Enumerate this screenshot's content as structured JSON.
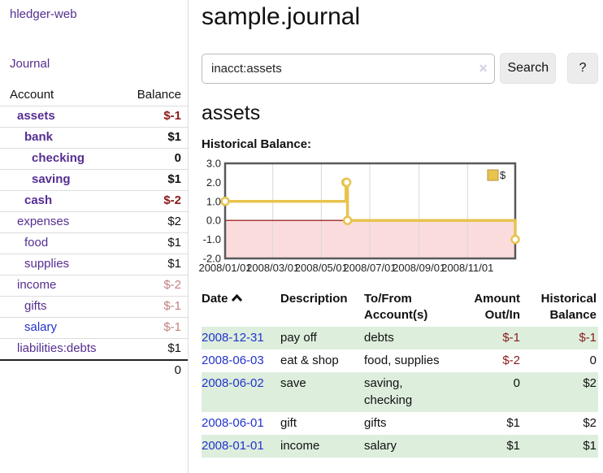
{
  "app": {
    "title": "hledger-web",
    "nav_journal_label": "Journal"
  },
  "sidebar": {
    "account_header": "Account",
    "balance_header": "Balance",
    "accounts": [
      {
        "name": "assets",
        "indent": 0,
        "balance": "$-1",
        "emph": true,
        "tone": "neg-strong",
        "link_tone": "purple"
      },
      {
        "name": "bank",
        "indent": 1,
        "balance": "$1",
        "emph": true,
        "tone": "pos",
        "link_tone": "purple"
      },
      {
        "name": "checking",
        "indent": 2,
        "balance": "0",
        "emph": true,
        "tone": "pos",
        "link_tone": "purple"
      },
      {
        "name": "saving",
        "indent": 2,
        "balance": "$1",
        "emph": true,
        "tone": "pos",
        "link_tone": "purple"
      },
      {
        "name": "cash",
        "indent": 1,
        "balance": "$-2",
        "emph": true,
        "tone": "neg-strong",
        "link_tone": "purple"
      },
      {
        "name": "expenses",
        "indent": 0,
        "balance": "$2",
        "emph": false,
        "tone": "pos",
        "link_tone": "purple"
      },
      {
        "name": "food",
        "indent": 1,
        "balance": "$1",
        "emph": false,
        "tone": "pos",
        "link_tone": "purple"
      },
      {
        "name": "supplies",
        "indent": 1,
        "balance": "$1",
        "emph": false,
        "tone": "pos",
        "link_tone": "purple"
      },
      {
        "name": "income",
        "indent": 0,
        "balance": "$-2",
        "emph": false,
        "tone": "neg-soft",
        "link_tone": "purple"
      },
      {
        "name": "gifts",
        "indent": 1,
        "balance": "$-1",
        "emph": false,
        "tone": "neg-soft",
        "link_tone": "purple"
      },
      {
        "name": "salary",
        "indent": 1,
        "balance": "$-1",
        "emph": false,
        "tone": "neg-soft",
        "link_tone": "blue"
      },
      {
        "name": "liabilities:debts",
        "indent": 0,
        "balance": "$1",
        "emph": false,
        "tone": "pos",
        "link_tone": "purple"
      }
    ],
    "total": "0"
  },
  "header": {
    "title": "sample.journal"
  },
  "search": {
    "query": "inacct:assets",
    "clear_icon": "✕",
    "search_button": "Search",
    "help_button": "?"
  },
  "account_page": {
    "title": "assets",
    "chart_label": "Historical Balance:"
  },
  "chart_data": {
    "type": "line",
    "style": "step-after",
    "title": "Historical Balance",
    "series": [
      {
        "name": "$",
        "points": [
          [
            "2008-01-01",
            1
          ],
          [
            "2008-06-01",
            2
          ],
          [
            "2008-06-02",
            2
          ],
          [
            "2008-06-03",
            0
          ],
          [
            "2008-12-31",
            -1
          ]
        ]
      }
    ],
    "ylim": [
      -2,
      3
    ],
    "ytick_labels": [
      "3.0",
      "2.0",
      "1.0",
      "0.0",
      "-1.0",
      "-2.0"
    ],
    "yticks": [
      3,
      2,
      1,
      0,
      -1,
      -2
    ],
    "xticks": [
      "2008/01/01",
      "2008/03/01",
      "2008/05/01",
      "2008/07/01",
      "2008/09/01",
      "2008/11/01"
    ],
    "legend": {
      "label": "$",
      "position": "top-right"
    },
    "grid": "vertical-only",
    "colors": {
      "line": "#e8c34e",
      "marker_fill": "#ffffff",
      "legend_border": "#b8963a",
      "negative_region": "#fbdcdc",
      "zero_line": "#8b0000",
      "plot_border": "#58585a",
      "gridline": "#d8d8d8"
    }
  },
  "register": {
    "columns": [
      "Date",
      "Description",
      "To/From Account(s)",
      "Amount Out/In",
      "Historical Balance"
    ],
    "rows": [
      {
        "date": "2008-12-31",
        "description": "pay off",
        "accounts": "debts",
        "amount": "$-1",
        "balance": "$-1",
        "amount_neg": true,
        "balance_neg": true,
        "green": true
      },
      {
        "date": "2008-06-03",
        "description": "eat & shop",
        "accounts": "food, supplies",
        "amount": "$-2",
        "balance": "0",
        "amount_neg": true,
        "balance_neg": false,
        "green": false
      },
      {
        "date": "2008-06-02",
        "description": "save",
        "accounts": "saving, checking",
        "amount": "0",
        "balance": "$2",
        "amount_neg": false,
        "balance_neg": false,
        "green": true
      },
      {
        "date": "2008-06-01",
        "description": "gift",
        "accounts": "gifts",
        "amount": "$1",
        "balance": "$2",
        "amount_neg": false,
        "balance_neg": false,
        "green": false
      },
      {
        "date": "2008-01-01",
        "description": "income",
        "accounts": "salary",
        "amount": "$1",
        "balance": "$1",
        "amount_neg": false,
        "balance_neg": false,
        "green": true
      }
    ]
  },
  "colors": {
    "accent_purple": "#552e91",
    "link_blue": "#2233cc",
    "negative_red": "#8b1a1a",
    "soft_red": "#c28080",
    "row_green": "#ddeedd"
  }
}
